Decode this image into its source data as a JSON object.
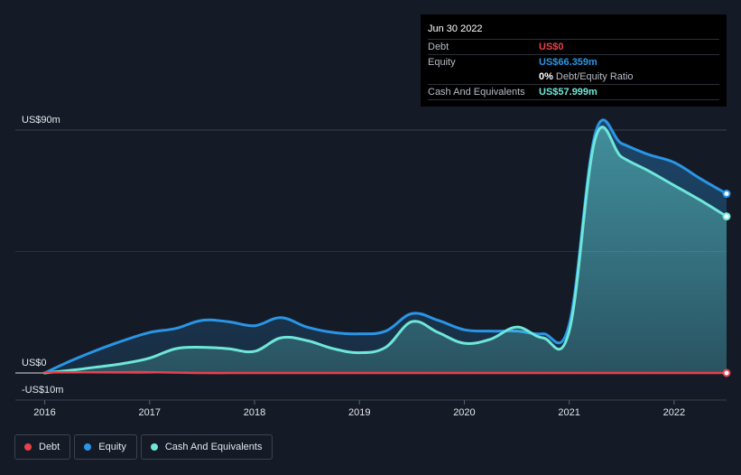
{
  "tooltip": {
    "date": "Jun 30 2022",
    "rows": {
      "debt": {
        "name": "Debt",
        "value": "US$0",
        "color": "#e8414a"
      },
      "equity": {
        "name": "Equity",
        "value": "US$66.359m",
        "color": "#2a95e6"
      },
      "ratio": {
        "value": "0%",
        "label": "Debt/Equity Ratio"
      },
      "cash": {
        "name": "Cash And Equivalents",
        "value": "US$57.999m",
        "color": "#6ee7d9"
      }
    }
  },
  "legend": [
    {
      "label": "Debt",
      "color": "#e8414a"
    },
    {
      "label": "Equity",
      "color": "#2a95e6"
    },
    {
      "label": "Cash And Equivalents",
      "color": "#6ee7d9"
    }
  ],
  "chart_data": {
    "type": "area",
    "title": "",
    "xlabel": "",
    "ylabel": "",
    "ylim": [
      -10,
      90
    ],
    "y_tick_labels": [
      {
        "value": 90,
        "label": "US$90m"
      },
      {
        "value": 0,
        "label": "US$0"
      },
      {
        "value": -10,
        "label": "-US$10m"
      }
    ],
    "x_ticks": [
      {
        "value": 2016,
        "label": "2016"
      },
      {
        "value": 2017,
        "label": "2017"
      },
      {
        "value": 2018,
        "label": "2018"
      },
      {
        "value": 2019,
        "label": "2019"
      },
      {
        "value": 2020,
        "label": "2020"
      },
      {
        "value": 2021,
        "label": "2021"
      },
      {
        "value": 2022,
        "label": "2022"
      }
    ],
    "xlim": [
      2015.72,
      2022.5
    ],
    "series": [
      {
        "name": "Equity",
        "color": "#2a95e6",
        "points": [
          [
            2016.0,
            0
          ],
          [
            2016.25,
            4.5
          ],
          [
            2016.5,
            8.5
          ],
          [
            2016.75,
            12
          ],
          [
            2017.0,
            15
          ],
          [
            2017.25,
            16.5
          ],
          [
            2017.5,
            19.5
          ],
          [
            2017.75,
            19
          ],
          [
            2018.0,
            17.5
          ],
          [
            2018.25,
            20.5
          ],
          [
            2018.5,
            17
          ],
          [
            2018.75,
            15
          ],
          [
            2019.0,
            14.5
          ],
          [
            2019.25,
            15.5
          ],
          [
            2019.5,
            22
          ],
          [
            2019.75,
            19.5
          ],
          [
            2020.0,
            16
          ],
          [
            2020.25,
            15.5
          ],
          [
            2020.5,
            15.5
          ],
          [
            2020.75,
            14.5
          ],
          [
            2021.0,
            18
          ],
          [
            2021.25,
            89
          ],
          [
            2021.5,
            85
          ],
          [
            2021.75,
            81
          ],
          [
            2022.0,
            78
          ],
          [
            2022.25,
            72
          ],
          [
            2022.5,
            66.4
          ]
        ]
      },
      {
        "name": "Cash And Equivalents",
        "color": "#6ee7d9",
        "points": [
          [
            2016.0,
            0
          ],
          [
            2016.25,
            1
          ],
          [
            2016.5,
            2.2
          ],
          [
            2016.75,
            3.5
          ],
          [
            2017.0,
            5.5
          ],
          [
            2017.25,
            9
          ],
          [
            2017.5,
            9.5
          ],
          [
            2017.75,
            9
          ],
          [
            2018.0,
            8
          ],
          [
            2018.25,
            13
          ],
          [
            2018.5,
            12
          ],
          [
            2018.75,
            9
          ],
          [
            2019.0,
            7.5
          ],
          [
            2019.25,
            9.5
          ],
          [
            2019.5,
            19
          ],
          [
            2019.75,
            15
          ],
          [
            2020.0,
            11
          ],
          [
            2020.25,
            12.5
          ],
          [
            2020.5,
            17
          ],
          [
            2020.75,
            13
          ],
          [
            2021.0,
            15.5
          ],
          [
            2021.25,
            87
          ],
          [
            2021.5,
            80
          ],
          [
            2021.75,
            75
          ],
          [
            2022.0,
            69.5
          ],
          [
            2022.25,
            64
          ],
          [
            2022.5,
            58
          ]
        ]
      },
      {
        "name": "Debt",
        "color": "#e8414a",
        "points": [
          [
            2016.0,
            0.2
          ],
          [
            2016.75,
            0.3
          ],
          [
            2017.0,
            0.3
          ],
          [
            2017.5,
            0
          ],
          [
            2018.0,
            0
          ],
          [
            2019.0,
            0
          ],
          [
            2020.0,
            0
          ],
          [
            2021.0,
            0
          ],
          [
            2022.0,
            0
          ],
          [
            2022.5,
            0
          ]
        ]
      }
    ]
  }
}
